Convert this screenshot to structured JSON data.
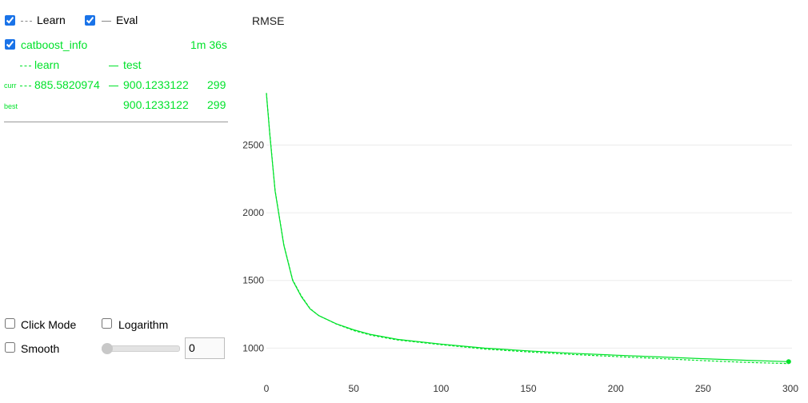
{
  "legend": {
    "learn_label": "Learn",
    "eval_label": "Eval"
  },
  "run": {
    "name": "catboost_info",
    "time": "1m 36s",
    "col_learn": "learn",
    "col_test": "test",
    "curr_label": "curr",
    "curr_learn": "885.5820974",
    "curr_test": "900.1233122",
    "curr_iter": "299",
    "best_label": "best",
    "best_test": "900.1233122",
    "best_iter": "299"
  },
  "controls": {
    "click_mode_label": "Click Mode",
    "logarithm_label": "Logarithm",
    "smooth_label": "Smooth",
    "smooth_value": "0",
    "smooth_slider_fraction": 0
  },
  "colors": {
    "series": "#00e22a",
    "checkbox": "#1a73e8"
  },
  "chart_data": {
    "type": "line",
    "title": "RMSE",
    "xticks": [
      0,
      50,
      100,
      150,
      200,
      250,
      300
    ],
    "yticks": [
      1000,
      1500,
      2000,
      2500
    ],
    "xlim": [
      0,
      300
    ],
    "ylim": [
      890,
      2910
    ],
    "grid": true,
    "series": [
      {
        "name": "test",
        "style": "solid",
        "x": [
          0,
          2,
          5,
          10,
          15,
          20,
          25,
          30,
          40,
          50,
          60,
          75,
          100,
          125,
          150,
          175,
          200,
          225,
          250,
          275,
          299
        ],
        "y": [
          2880,
          2570,
          2160,
          1760,
          1500,
          1380,
          1290,
          1240,
          1180,
          1135,
          1100,
          1065,
          1030,
          1000,
          980,
          962,
          948,
          935,
          922,
          910,
          900
        ]
      },
      {
        "name": "learn",
        "style": "dashed",
        "x": [
          0,
          2,
          5,
          10,
          15,
          20,
          25,
          30,
          40,
          50,
          60,
          75,
          100,
          125,
          150,
          175,
          200,
          225,
          250,
          275,
          299
        ],
        "y": [
          2885,
          2575,
          2165,
          1765,
          1505,
          1385,
          1292,
          1240,
          1178,
          1130,
          1095,
          1060,
          1025,
          993,
          972,
          953,
          938,
          923,
          908,
          895,
          886
        ]
      }
    ]
  }
}
